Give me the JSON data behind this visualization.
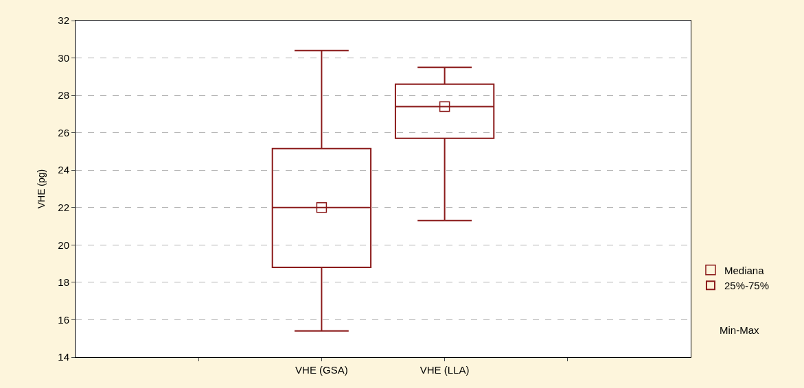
{
  "chart_data": {
    "type": "box",
    "ylabel": "VHE (pg)",
    "categories": [
      null,
      "VHE (GSA)",
      "VHE (LLA)",
      null
    ],
    "ylim": [
      14,
      32
    ],
    "yticks": [
      14,
      16,
      18,
      20,
      22,
      24,
      26,
      28,
      30,
      32
    ],
    "grid": "y",
    "legend": "bottom right",
    "series": [
      {
        "name": "25%-75%",
        "color": "#8b1a1a",
        "boxes": [
          null,
          {
            "low": 15.4,
            "q1": 18.8,
            "median": 22.0,
            "q3": 25.15,
            "high": 30.4
          },
          {
            "low": 21.3,
            "q1": 25.7,
            "median": 27.4,
            "q3": 28.6,
            "high": 29.5
          },
          null
        ]
      },
      {
        "name": "Mediana",
        "type": "scatter",
        "color": "#8b1a1a",
        "marker": "square",
        "values": [
          null,
          22.0,
          27.4,
          null
        ]
      }
    ],
    "annotations": [
      "Min-Max"
    ]
  }
}
